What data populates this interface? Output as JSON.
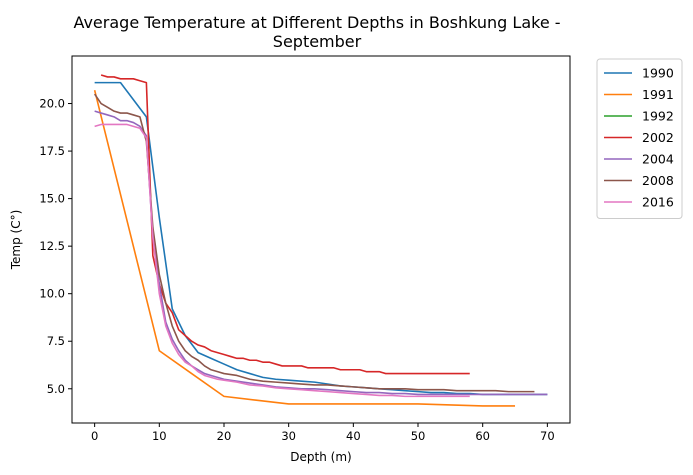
{
  "chart_data": {
    "type": "line",
    "title_lines": [
      "Average Temperature at Different Depths in Boshkung Lake -",
      "September"
    ],
    "xlabel": "Depth (m)",
    "ylabel": "Temp (C°)",
    "xlim": [
      -3.5,
      73.5
    ],
    "ylim": [
      3.2,
      22.5
    ],
    "xticks": [
      0,
      10,
      20,
      30,
      40,
      50,
      60,
      70
    ],
    "yticks": [
      5.0,
      7.5,
      10.0,
      12.5,
      15.0,
      17.5,
      20.0
    ],
    "ytick_labels": [
      "5.0",
      "7.5",
      "10.0",
      "12.5",
      "15.0",
      "17.5",
      "20.0"
    ],
    "grid": false,
    "legend_position": "outside-top-right",
    "series": [
      {
        "name": "1990",
        "color": "#1f77b4",
        "x": [
          0,
          2,
          4,
          6,
          8,
          10,
          12,
          14,
          16,
          18,
          20,
          22,
          24,
          26,
          28,
          30,
          32,
          34,
          36,
          38,
          40,
          42,
          44,
          46,
          48,
          50,
          52,
          54,
          56,
          58,
          60,
          62,
          64,
          66,
          68,
          70
        ],
        "y": [
          21.1,
          21.1,
          21.1,
          20.2,
          19.3,
          14.0,
          9.2,
          7.8,
          6.9,
          6.6,
          6.3,
          6.0,
          5.8,
          5.6,
          5.5,
          5.45,
          5.4,
          5.35,
          5.25,
          5.15,
          5.1,
          5.05,
          5.0,
          4.95,
          4.9,
          4.85,
          4.8,
          4.8,
          4.75,
          4.75,
          4.7,
          4.7,
          4.7,
          4.7,
          4.7,
          4.7
        ]
      },
      {
        "name": "1991",
        "color": "#ff7f0e",
        "x": [
          0,
          10,
          15,
          20,
          25,
          30,
          35,
          40,
          45,
          50,
          55,
          60,
          65
        ],
        "y": [
          20.7,
          7.0,
          5.8,
          4.6,
          4.4,
          4.2,
          4.2,
          4.2,
          4.2,
          4.2,
          4.15,
          4.1,
          4.1
        ]
      },
      {
        "name": "1992",
        "color": "#2ca02c",
        "x": [],
        "y": []
      },
      {
        "name": "2002",
        "color": "#d62728",
        "x": [
          1,
          2,
          3,
          4,
          5,
          6,
          7,
          8,
          9,
          10,
          11,
          12,
          13,
          14,
          15,
          16,
          17,
          18,
          19,
          20,
          21,
          22,
          23,
          24,
          25,
          26,
          27,
          28,
          29,
          30,
          31,
          32,
          33,
          34,
          35,
          36,
          37,
          38,
          39,
          40,
          41,
          42,
          43,
          44,
          45,
          46,
          47,
          48,
          49,
          50,
          51,
          52,
          53,
          54,
          55,
          56,
          57,
          58
        ],
        "y": [
          21.5,
          21.4,
          21.4,
          21.3,
          21.3,
          21.3,
          21.2,
          21.1,
          12.0,
          10.5,
          9.5,
          9.0,
          8.1,
          7.8,
          7.5,
          7.3,
          7.2,
          7.0,
          6.9,
          6.8,
          6.7,
          6.6,
          6.6,
          6.5,
          6.5,
          6.4,
          6.4,
          6.3,
          6.2,
          6.2,
          6.2,
          6.2,
          6.1,
          6.1,
          6.1,
          6.1,
          6.1,
          6.0,
          6.0,
          6.0,
          6.0,
          5.9,
          5.9,
          5.9,
          5.8,
          5.8,
          5.8,
          5.8,
          5.8,
          5.8,
          5.8,
          5.8,
          5.8,
          5.8,
          5.8,
          5.8,
          5.8,
          5.8
        ]
      },
      {
        "name": "2004",
        "color": "#9467bd",
        "x": [
          0,
          1,
          2,
          3,
          4,
          5,
          6,
          7,
          8,
          9,
          10,
          11,
          12,
          13,
          14,
          15,
          16,
          17,
          18,
          19,
          20,
          22,
          24,
          26,
          28,
          30,
          32,
          34,
          36,
          38,
          40,
          42,
          44,
          46,
          48,
          50,
          52,
          54,
          56,
          58,
          60,
          62,
          64,
          66,
          68,
          70
        ],
        "y": [
          19.6,
          19.5,
          19.4,
          19.3,
          19.1,
          19.1,
          19.0,
          18.8,
          18.3,
          13.0,
          10.5,
          8.5,
          7.6,
          7.0,
          6.5,
          6.2,
          6.0,
          5.8,
          5.7,
          5.6,
          5.5,
          5.4,
          5.3,
          5.2,
          5.1,
          5.05,
          5.0,
          5.0,
          4.95,
          4.9,
          4.85,
          4.8,
          4.8,
          4.75,
          4.75,
          4.7,
          4.7,
          4.7,
          4.7,
          4.7,
          4.7,
          4.7,
          4.7,
          4.7,
          4.7,
          4.7
        ]
      },
      {
        "name": "2008",
        "color": "#8c564b",
        "x": [
          0,
          1,
          2,
          3,
          4,
          5,
          6,
          7,
          8,
          9,
          10,
          11,
          12,
          13,
          14,
          15,
          16,
          17,
          18,
          19,
          20,
          22,
          24,
          26,
          28,
          30,
          32,
          34,
          36,
          38,
          40,
          42,
          44,
          46,
          48,
          50,
          52,
          54,
          56,
          58,
          60,
          62,
          64,
          66,
          68
        ],
        "y": [
          20.5,
          20.0,
          19.8,
          19.6,
          19.5,
          19.5,
          19.4,
          19.3,
          18.0,
          13.5,
          11.0,
          9.5,
          8.3,
          7.5,
          7.0,
          6.7,
          6.5,
          6.2,
          6.0,
          5.9,
          5.8,
          5.7,
          5.5,
          5.4,
          5.35,
          5.3,
          5.25,
          5.2,
          5.2,
          5.15,
          5.1,
          5.05,
          5.0,
          5.0,
          5.0,
          4.95,
          4.95,
          4.95,
          4.9,
          4.9,
          4.9,
          4.9,
          4.85,
          4.85,
          4.85
        ]
      },
      {
        "name": "2016",
        "color": "#e377c2",
        "x": [
          0,
          1,
          2,
          3,
          4,
          5,
          6,
          7,
          8,
          9,
          10,
          11,
          12,
          13,
          14,
          15,
          16,
          17,
          18,
          19,
          20,
          22,
          24,
          26,
          28,
          30,
          32,
          34,
          36,
          38,
          40,
          42,
          44,
          46,
          48,
          50,
          52,
          54,
          56,
          58
        ],
        "y": [
          18.8,
          18.9,
          18.9,
          18.9,
          18.9,
          18.9,
          18.8,
          18.7,
          18.2,
          13.0,
          10.0,
          8.3,
          7.4,
          6.8,
          6.4,
          6.2,
          5.9,
          5.7,
          5.6,
          5.5,
          5.45,
          5.35,
          5.2,
          5.15,
          5.05,
          5.0,
          4.95,
          4.9,
          4.85,
          4.8,
          4.75,
          4.7,
          4.65,
          4.65,
          4.6,
          4.6,
          4.6,
          4.6,
          4.6,
          4.6
        ]
      }
    ]
  }
}
